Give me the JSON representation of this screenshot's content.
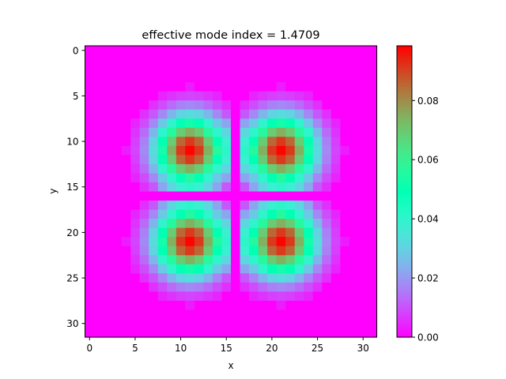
{
  "chart_data": {
    "type": "heatmap",
    "title": "effective mode index = 1.4709",
    "xlabel": "x",
    "ylabel": "y",
    "grid": "off",
    "grid_size": [
      32,
      32
    ],
    "x_range": [
      -0.5,
      31.5
    ],
    "y_range": [
      31.5,
      -0.5
    ],
    "y_inverted": true,
    "x_ticks": [
      0,
      5,
      10,
      15,
      20,
      25,
      30
    ],
    "y_ticks": [
      0,
      5,
      10,
      15,
      20,
      25,
      30
    ],
    "colormap": "rainbow",
    "colorbar": {
      "range": [
        0.0,
        0.0985
      ],
      "ticks": [
        0.0,
        0.02,
        0.04,
        0.06,
        0.08
      ],
      "tick_labels": [
        "0.00",
        "0.02",
        "0.04",
        "0.06",
        "0.08"
      ]
    },
    "lobes": [
      {
        "center": [
          11,
          11
        ],
        "peak": 0.098
      },
      {
        "center": [
          21,
          11
        ],
        "peak": 0.098
      },
      {
        "center": [
          11,
          21
        ],
        "peak": 0.098
      },
      {
        "center": [
          21,
          21
        ],
        "peak": 0.098
      }
    ],
    "lobe_sigma": 2.7,
    "support_radius": 7.0,
    "nodal_lines": {
      "x": 16,
      "y": 16
    }
  }
}
